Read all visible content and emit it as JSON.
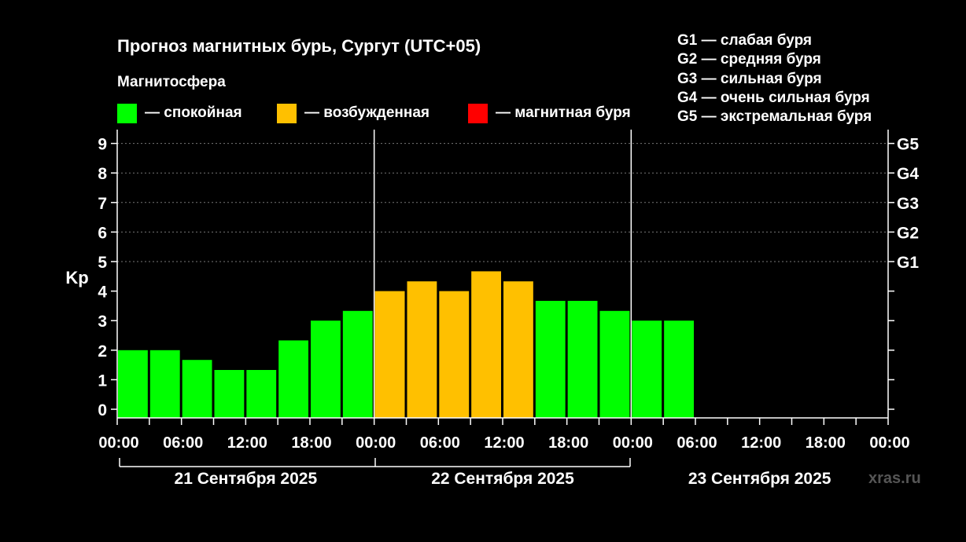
{
  "title": "Прогноз магнитных бурь, Сургут (UTC+05)",
  "subtitle": "Магнитосфера",
  "legend": [
    {
      "label": "— спокойная",
      "color": "#00FF00"
    },
    {
      "label": "— возбужденная",
      "color": "#FFC000"
    },
    {
      "label": "— магнитная буря",
      "color": "#FF0000"
    }
  ],
  "g_legend": [
    "G1 — слабая буря",
    "G2 — средняя буря",
    "G3 — сильная буря",
    "G4 — очень сильная буря",
    "G5 — экстремальная буря"
  ],
  "watermark": "xras.ru",
  "chart_data": {
    "type": "bar",
    "ylabel": "Kp",
    "ylim": [
      0,
      9
    ],
    "y_ticks": [
      "0",
      "1",
      "2",
      "3",
      "4",
      "5",
      "6",
      "7",
      "8",
      "9"
    ],
    "right_ticks": [
      {
        "value": 5,
        "label": "G1"
      },
      {
        "value": 6,
        "label": "G2"
      },
      {
        "value": 7,
        "label": "G3"
      },
      {
        "value": 8,
        "label": "G4"
      },
      {
        "value": 9,
        "label": "G5"
      }
    ],
    "x_tick_labels": [
      "00:00",
      "06:00",
      "12:00",
      "18:00",
      "00:00",
      "06:00",
      "12:00",
      "18:00",
      "00:00",
      "06:00",
      "12:00",
      "18:00",
      "00:00"
    ],
    "days": [
      "21 Сентября 2025",
      "22 Сентября 2025",
      "23 Сентября 2025"
    ],
    "slots_per_day": 8,
    "grid": "dashed at 5-9",
    "values": [
      2.0,
      2.0,
      1.67,
      1.33,
      1.33,
      2.33,
      3.0,
      3.33,
      4.0,
      4.33,
      4.0,
      4.67,
      4.33,
      3.67,
      3.67,
      3.33,
      3.0,
      3.0
    ],
    "levels": [
      "calm",
      "calm",
      "calm",
      "calm",
      "calm",
      "calm",
      "calm",
      "calm",
      "excited",
      "excited",
      "excited",
      "excited",
      "excited",
      "calm",
      "calm",
      "calm",
      "calm",
      "calm"
    ],
    "colors": {
      "calm": "#00FF00",
      "excited": "#FFC000",
      "storm": "#FF0000"
    }
  }
}
